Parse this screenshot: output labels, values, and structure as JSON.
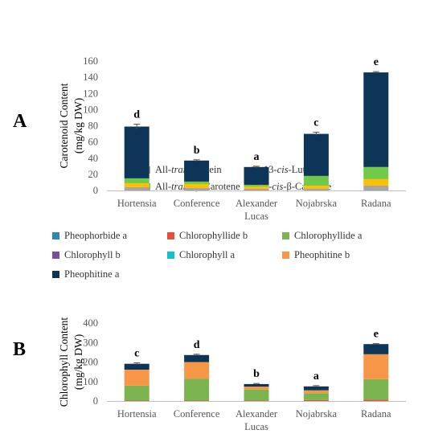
{
  "chart_data": [
    {
      "type": "bar",
      "stacked": true,
      "panel_label": "A",
      "title": "",
      "xlabel": "",
      "ylabel": "Carotenoid Content (mg/kg DW)",
      "ylabel_lines": [
        "Carotenoid Content",
        "(mg/kg DW)"
      ],
      "ylim": [
        0,
        160
      ],
      "yticks": [
        0,
        20,
        40,
        60,
        80,
        100,
        120,
        140,
        160
      ],
      "grid": false,
      "legend_position": "top",
      "categories": [
        "Hortensia",
        "Conference",
        "Alexander Lucas",
        "Nojabrska",
        "Radana"
      ],
      "category_lines": [
        [
          "Hortensia"
        ],
        [
          "Conference"
        ],
        [
          "Alexander",
          "Lucas"
        ],
        [
          "Nojabrska"
        ],
        [
          "Radana"
        ]
      ],
      "series": [
        {
          "name": "All-trans-Lutein",
          "legend_parts": [
            {
              "t": "All-",
              "i": false
            },
            {
              "t": "trans",
              "i": true
            },
            {
              "t": "-Lutein",
              "i": false
            }
          ],
          "color": "#a6a6a6",
          "values": [
            4,
            3,
            2,
            2,
            6
          ]
        },
        {
          "name": "13-cis-Lutein",
          "legend_parts": [
            {
              "t": "13-",
              "i": false
            },
            {
              "t": "cis",
              "i": true
            },
            {
              "t": "-Lutein",
              "i": false
            }
          ],
          "color": "#ffc000",
          "values": [
            5,
            5,
            3,
            4,
            8
          ]
        },
        {
          "name": "All-trans-β-Carotene",
          "legend_parts": [
            {
              "t": "All-",
              "i": false
            },
            {
              "t": "trans",
              "i": true
            },
            {
              "t": "-β-Carotene",
              "i": false
            }
          ],
          "color": "#70c94b",
          "values": [
            6,
            3,
            2,
            12,
            15
          ]
        },
        {
          "name": "9-cis-β-Carotene",
          "legend_parts": [
            {
              "t": "9-",
              "i": false
            },
            {
              "t": "cis",
              "i": true
            },
            {
              "t": "-β-Carotene",
              "i": false
            }
          ],
          "color": "#0d3557",
          "values": [
            64,
            26,
            22,
            52,
            117
          ]
        }
      ],
      "error": [
        3,
        1,
        1,
        2,
        1
      ],
      "letters": [
        "d",
        "b",
        "a",
        "c",
        "e"
      ]
    },
    {
      "type": "bar",
      "stacked": true,
      "panel_label": "B",
      "title": "",
      "xlabel": "",
      "ylabel": "Chlorophyll Content (mg/kg DW)",
      "ylabel_lines": [
        "Chlorophyll Content",
        "(mg/kg DW)"
      ],
      "ylim": [
        0,
        400
      ],
      "yticks": [
        0,
        100,
        200,
        300,
        400
      ],
      "grid": false,
      "legend_position": "top",
      "categories": [
        "Hortensia",
        "Conference",
        "Alexander Lucas",
        "Nojabrska",
        "Radana"
      ],
      "category_lines": [
        [
          "Hortensia"
        ],
        [
          "Conference"
        ],
        [
          "Alexander",
          "Lucas"
        ],
        [
          "Nojabrska"
        ],
        [
          "Radana"
        ]
      ],
      "series": [
        {
          "name": "Pheophorbide a",
          "color": "#2e86c1",
          "values": [
            0,
            0,
            0,
            0,
            0
          ]
        },
        {
          "name": "Chlorophyllide b",
          "color": "#e74c3c",
          "values": [
            2,
            2,
            2,
            5,
            7
          ]
        },
        {
          "name": "Chlorophyllide a",
          "color": "#7cb550",
          "values": [
            77,
            113,
            57,
            35,
            105
          ]
        },
        {
          "name": "Chlorophyll b",
          "color": "#7b4f9e",
          "values": [
            0,
            0,
            0,
            0,
            0
          ]
        },
        {
          "name": "Chlorophyll a",
          "color": "#17becf",
          "values": [
            0,
            0,
            0,
            0,
            0
          ]
        },
        {
          "name": "Pheophitine b",
          "color": "#f79646",
          "values": [
            82,
            85,
            15,
            15,
            128
          ]
        },
        {
          "name": "Pheophitine a",
          "color": "#0d3557",
          "values": [
            30,
            36,
            13,
            20,
            52
          ]
        }
      ],
      "error": [
        5,
        4,
        3,
        4,
        3
      ],
      "letters": [
        "c",
        "d",
        "b",
        "a",
        "e"
      ]
    }
  ]
}
